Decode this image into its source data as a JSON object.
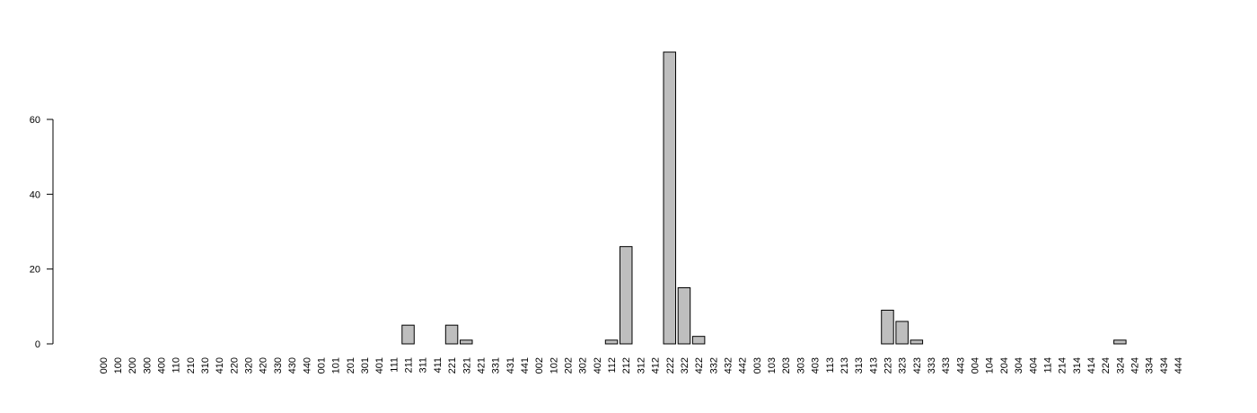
{
  "chart_data": {
    "type": "bar",
    "title": "",
    "xlabel": "",
    "ylabel": "",
    "ylim": [
      0,
      80
    ],
    "yticks": [
      0,
      20,
      40,
      60
    ],
    "grid": false,
    "colors": {
      "bar_fill": "#bebebe",
      "bar_stroke": "#000000"
    },
    "categories": [
      "000",
      "100",
      "200",
      "300",
      "400",
      "110",
      "210",
      "310",
      "410",
      "220",
      "320",
      "420",
      "330",
      "430",
      "440",
      "001",
      "101",
      "201",
      "301",
      "401",
      "111",
      "211",
      "311",
      "411",
      "221",
      "321",
      "421",
      "331",
      "431",
      "441",
      "002",
      "102",
      "202",
      "302",
      "402",
      "112",
      "212",
      "312",
      "412",
      "222",
      "322",
      "422",
      "332",
      "432",
      "442",
      "003",
      "103",
      "203",
      "303",
      "403",
      "113",
      "213",
      "313",
      "413",
      "223",
      "323",
      "423",
      "333",
      "433",
      "443",
      "004",
      "104",
      "204",
      "304",
      "404",
      "114",
      "214",
      "314",
      "414",
      "224",
      "324",
      "424",
      "334",
      "434",
      "444"
    ],
    "values": [
      0,
      0,
      0,
      0,
      0,
      0,
      0,
      0,
      0,
      0,
      0,
      0,
      0,
      0,
      0,
      0,
      0,
      0,
      0,
      0,
      0,
      5,
      0,
      0,
      5,
      1,
      0,
      0,
      0,
      0,
      0,
      0,
      0,
      0,
      0,
      1,
      26,
      0,
      0,
      78,
      15,
      2,
      0,
      0,
      0,
      0,
      0,
      0,
      0,
      0,
      0,
      0,
      0,
      0,
      9,
      6,
      1,
      0,
      0,
      0,
      0,
      0,
      0,
      0,
      0,
      0,
      0,
      0,
      0,
      0,
      1,
      0,
      0,
      0,
      0
    ]
  }
}
